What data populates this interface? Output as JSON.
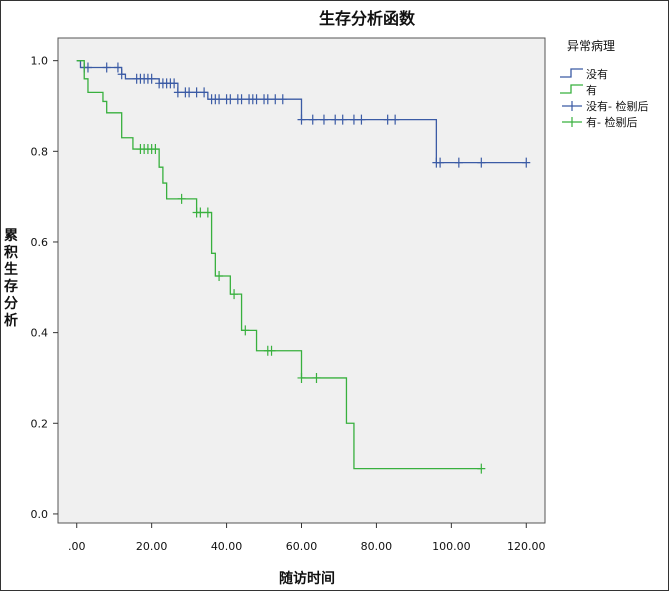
{
  "chart_data": {
    "type": "line",
    "title": "生存分析函数",
    "xlabel": "随访时间",
    "ylabel": "累积生存分析",
    "xlim": [
      -5,
      125
    ],
    "ylim": [
      -0.02,
      1.05
    ],
    "x_ticks": [
      0,
      20,
      40,
      60,
      80,
      100,
      120
    ],
    "x_tick_labels": [
      ".00",
      "20.00",
      "40.00",
      "60.00",
      "80.00",
      "100.00",
      "120.00"
    ],
    "y_ticks": [
      0,
      0.2,
      0.4,
      0.6,
      0.8,
      1.0
    ],
    "y_tick_labels": [
      "0.0",
      "0.2",
      "0.4",
      "0.6",
      "0.8",
      "1.0"
    ],
    "grid": false,
    "legend_position": "outside-right",
    "legend_title": "异常病理",
    "legend": [
      {
        "label": "没有",
        "kind": "step",
        "color": "#3b5ba5"
      },
      {
        "label": "有",
        "kind": "step",
        "color": "#38b03e"
      },
      {
        "label": "没有- 检剔后",
        "kind": "censor",
        "color": "#3b5ba5"
      },
      {
        "label": "有- 检剔后",
        "kind": "censor",
        "color": "#38b03e"
      }
    ],
    "series": [
      {
        "name": "没有",
        "color": "#3b5ba5",
        "steps": [
          [
            0,
            1.0
          ],
          [
            1,
            0.985
          ],
          [
            12,
            0.97
          ],
          [
            13,
            0.96
          ],
          [
            22,
            0.95
          ],
          [
            27,
            0.93
          ],
          [
            35,
            0.915
          ],
          [
            60,
            0.87
          ],
          [
            96,
            0.775
          ],
          [
            120,
            0.775
          ]
        ],
        "censored": [
          [
            2,
            0.985
          ],
          [
            3,
            0.985
          ],
          [
            8,
            0.985
          ],
          [
            11,
            0.985
          ],
          [
            12,
            0.97
          ],
          [
            16,
            0.96
          ],
          [
            17,
            0.96
          ],
          [
            18,
            0.96
          ],
          [
            19,
            0.96
          ],
          [
            20,
            0.96
          ],
          [
            22,
            0.95
          ],
          [
            23,
            0.95
          ],
          [
            24,
            0.95
          ],
          [
            25,
            0.95
          ],
          [
            26,
            0.95
          ],
          [
            27,
            0.93
          ],
          [
            29,
            0.93
          ],
          [
            30,
            0.93
          ],
          [
            32,
            0.93
          ],
          [
            34,
            0.93
          ],
          [
            36,
            0.915
          ],
          [
            37,
            0.915
          ],
          [
            38,
            0.915
          ],
          [
            40,
            0.915
          ],
          [
            41,
            0.915
          ],
          [
            43,
            0.915
          ],
          [
            44,
            0.915
          ],
          [
            46,
            0.915
          ],
          [
            47,
            0.915
          ],
          [
            48,
            0.915
          ],
          [
            50,
            0.915
          ],
          [
            51,
            0.915
          ],
          [
            53,
            0.915
          ],
          [
            55,
            0.915
          ],
          [
            60,
            0.87
          ],
          [
            63,
            0.87
          ],
          [
            66,
            0.87
          ],
          [
            69,
            0.87
          ],
          [
            71,
            0.87
          ],
          [
            74,
            0.87
          ],
          [
            76,
            0.87
          ],
          [
            83,
            0.87
          ],
          [
            85,
            0.87
          ],
          [
            96,
            0.775
          ],
          [
            97,
            0.775
          ],
          [
            102,
            0.775
          ],
          [
            108,
            0.775
          ],
          [
            120,
            0.775
          ]
        ]
      },
      {
        "name": "有",
        "color": "#38b03e",
        "steps": [
          [
            0,
            1.0
          ],
          [
            2,
            0.96
          ],
          [
            3,
            0.93
          ],
          [
            7,
            0.91
          ],
          [
            8,
            0.885
          ],
          [
            12,
            0.83
          ],
          [
            15,
            0.805
          ],
          [
            22,
            0.765
          ],
          [
            23,
            0.73
          ],
          [
            24,
            0.695
          ],
          [
            32,
            0.665
          ],
          [
            36,
            0.575
          ],
          [
            37,
            0.525
          ],
          [
            41,
            0.485
          ],
          [
            44,
            0.405
          ],
          [
            48,
            0.36
          ],
          [
            60,
            0.3
          ],
          [
            72,
            0.2
          ],
          [
            74,
            0.1
          ],
          [
            108,
            0.1
          ]
        ],
        "censored": [
          [
            17,
            0.805
          ],
          [
            18,
            0.805
          ],
          [
            19,
            0.805
          ],
          [
            20,
            0.805
          ],
          [
            21,
            0.805
          ],
          [
            28,
            0.695
          ],
          [
            32,
            0.665
          ],
          [
            33,
            0.665
          ],
          [
            35,
            0.665
          ],
          [
            38,
            0.525
          ],
          [
            42,
            0.485
          ],
          [
            45,
            0.405
          ],
          [
            51,
            0.36
          ],
          [
            52,
            0.36
          ],
          [
            60,
            0.3
          ],
          [
            64,
            0.3
          ],
          [
            108,
            0.1
          ]
        ]
      }
    ]
  }
}
